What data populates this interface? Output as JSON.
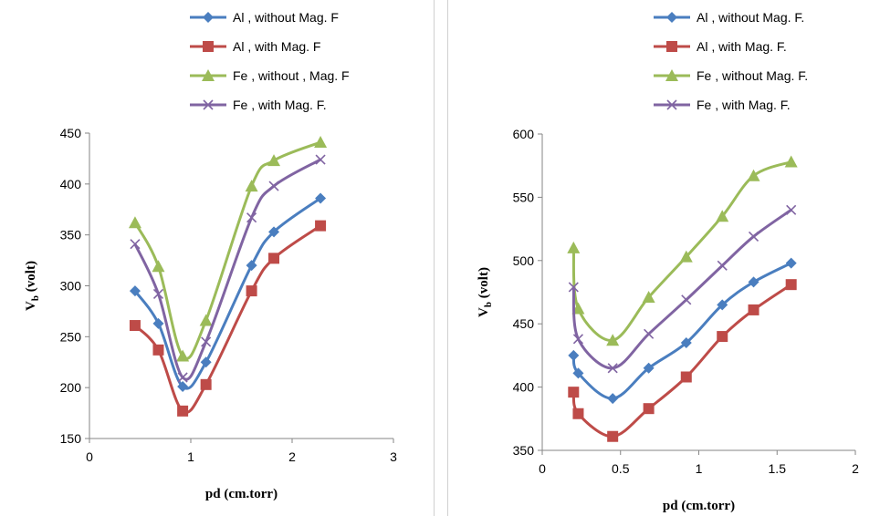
{
  "colors": {
    "al_without": "#4a7ebf",
    "al_with": "#be4b48",
    "fe_without": "#9bbb59",
    "fe_with": "#8064a2"
  },
  "chart_data": [
    {
      "type": "line",
      "xlabel": "pd (cm.torr)",
      "ylabel": "Vb (volt)",
      "ylabel_main": "V",
      "ylabel_sub": "b",
      "ylabel_rest": " (volt)",
      "xlim": [
        0,
        3
      ],
      "ylim": [
        150,
        450
      ],
      "xticks": [
        "0",
        "1",
        "2",
        "3"
      ],
      "yticks": [
        "150",
        "200",
        "250",
        "300",
        "350",
        "400",
        "450"
      ],
      "legend_position": "top-right",
      "series": [
        {
          "name": "Al , without  Mag. F",
          "marker": "diamond",
          "color": "#4a7ebf",
          "x": [
            0.45,
            0.68,
            0.92,
            1.15,
            1.6,
            1.82,
            2.28
          ],
          "y": [
            295,
            263,
            201,
            225,
            320,
            353,
            386
          ]
        },
        {
          "name": "Al , with Mag. F",
          "marker": "square",
          "color": "#be4b48",
          "x": [
            0.45,
            0.68,
            0.92,
            1.15,
            1.6,
            1.82,
            2.28
          ],
          "y": [
            261,
            237,
            177,
            203,
            295,
            327,
            359
          ]
        },
        {
          "name": "Fe , without  , Mag. F",
          "marker": "triangle",
          "color": "#9bbb59",
          "x": [
            0.45,
            0.68,
            0.92,
            1.15,
            1.6,
            1.82,
            2.28
          ],
          "y": [
            362,
            319,
            231,
            266,
            398,
            423,
            441
          ]
        },
        {
          "name": "Fe , with Mag. F.",
          "marker": "x",
          "color": "#8064a2",
          "x": [
            0.45,
            0.68,
            0.92,
            1.15,
            1.6,
            1.82,
            2.28
          ],
          "y": [
            341,
            292,
            210,
            245,
            367,
            398,
            424
          ]
        }
      ]
    },
    {
      "type": "line",
      "xlabel": "pd (cm.torr)",
      "ylabel": "Vb (volt)",
      "ylabel_main": "V",
      "ylabel_sub": "b",
      "ylabel_rest": " (volt)",
      "xlim": [
        0,
        2
      ],
      "ylim": [
        350,
        600
      ],
      "xticks": [
        "0",
        "0.5",
        "1",
        "1.5",
        "2"
      ],
      "yticks": [
        "350",
        "400",
        "450",
        "500",
        "550",
        "600"
      ],
      "legend_position": "top-right",
      "series": [
        {
          "name": "Al , without Mag. F.",
          "marker": "diamond",
          "color": "#4a7ebf",
          "x": [
            0.2,
            0.23,
            0.45,
            0.68,
            0.92,
            1.15,
            1.35,
            1.59
          ],
          "y": [
            425,
            411,
            391,
            415,
            435,
            465,
            483,
            498
          ]
        },
        {
          "name": "Al , with Mag. F.",
          "marker": "square",
          "color": "#be4b48",
          "x": [
            0.2,
            0.23,
            0.45,
            0.68,
            0.92,
            1.15,
            1.35,
            1.59
          ],
          "y": [
            396,
            379,
            361,
            383,
            408,
            440,
            461,
            481
          ]
        },
        {
          "name": "Fe , without Mag. F.",
          "marker": "triangle",
          "color": "#9bbb59",
          "x": [
            0.2,
            0.23,
            0.45,
            0.68,
            0.92,
            1.15,
            1.35,
            1.59
          ],
          "y": [
            510,
            462,
            437,
            471,
            503,
            535,
            567,
            578
          ]
        },
        {
          "name": "Fe , with Mag. F.",
          "marker": "x",
          "color": "#8064a2",
          "x": [
            0.2,
            0.23,
            0.45,
            0.68,
            0.92,
            1.15,
            1.35,
            1.59
          ],
          "y": [
            479,
            438,
            415,
            442,
            469,
            496,
            519,
            540
          ]
        }
      ]
    }
  ]
}
